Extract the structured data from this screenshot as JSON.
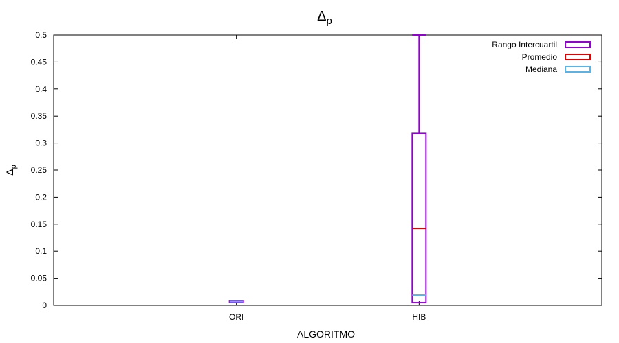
{
  "chart_data": {
    "type": "box",
    "title": "Δ",
    "title_sub": "p",
    "xlabel": "ALGORITMO",
    "ylabel": "Δ",
    "ylabel_sub": "p",
    "categories": [
      "ORI",
      "HIB"
    ],
    "ylim": [
      0,
      0.5
    ],
    "yticks": [
      0,
      0.05,
      0.1,
      0.15,
      0.2,
      0.25,
      0.3,
      0.35,
      0.4,
      0.45,
      0.5
    ],
    "ytick_labels": [
      "0",
      "0.05",
      "0.1",
      "0.15",
      "0.2",
      "0.25",
      "0.3",
      "0.35",
      "0.4",
      "0.45",
      "0.5"
    ],
    "grid": false,
    "legend_position": "top-right",
    "legend": [
      {
        "label": "Rango Intercuartil",
        "color": "#9400d3"
      },
      {
        "label": "Promedio",
        "color": "#e00000"
      },
      {
        "label": "Mediana",
        "color": "#56b4e9"
      }
    ],
    "boxes": [
      {
        "category": "ORI",
        "whisker_low": 0.006,
        "q1": 0.006,
        "q3": 0.008,
        "whisker_high": 0.008,
        "mean": 0.007,
        "median": 0.007
      },
      {
        "category": "HIB",
        "whisker_low": 0.005,
        "q1": 0.005,
        "q3": 0.318,
        "whisker_high": 0.5,
        "mean": 0.142,
        "median": 0.019
      }
    ]
  }
}
